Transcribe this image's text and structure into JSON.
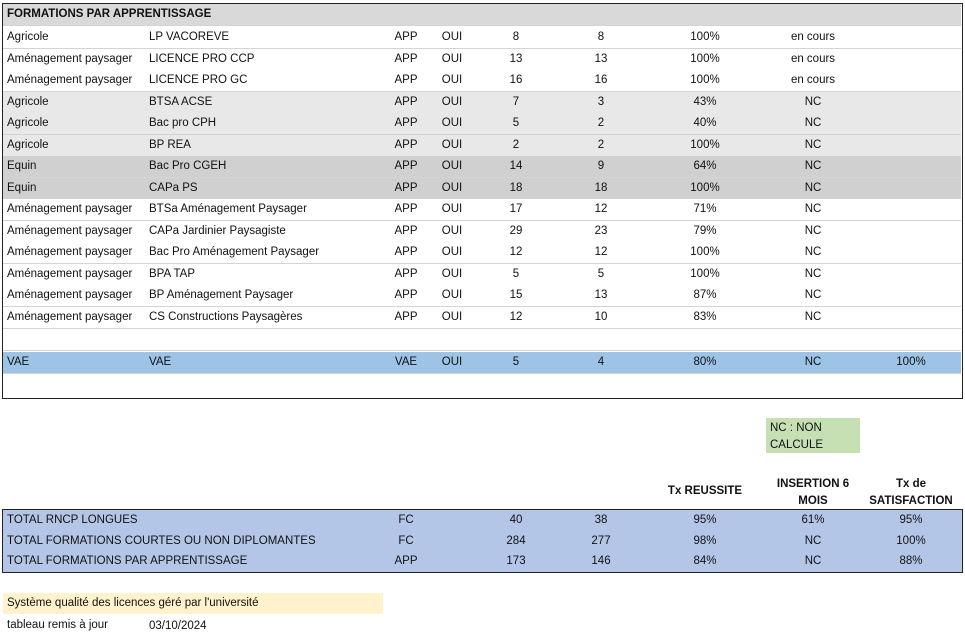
{
  "section_title": "FORMATIONS PAR APPRENTISSAGE",
  "rows": [
    [
      "Agricole",
      "LP VACOREVE",
      "APP",
      "OUI",
      "8",
      "8",
      "100%",
      "en cours"
    ],
    [
      "Aménagement paysager",
      "LICENCE PRO CCP",
      "APP",
      "OUI",
      "13",
      "13",
      "100%",
      "en cours"
    ],
    [
      "Aménagement paysager",
      "LICENCE PRO GC",
      "APP",
      "OUI",
      "16",
      "16",
      "100%",
      "en cours"
    ],
    [
      "Agricole",
      "BTSA ACSE",
      "APP",
      "OUI",
      "7",
      "3",
      "43%",
      "NC"
    ],
    [
      "Agricole",
      "Bac pro CPH",
      "APP",
      "OUI",
      "5",
      "2",
      "40%",
      "NC"
    ],
    [
      "Agricole",
      "BP REA",
      "APP",
      "OUI",
      "2",
      "2",
      "100%",
      "NC"
    ],
    [
      "Equin",
      "Bac Pro CGEH",
      "APP",
      "OUI",
      "14",
      "9",
      "64%",
      "NC"
    ],
    [
      "Equin",
      "CAPa PS",
      "APP",
      "OUI",
      "18",
      "18",
      "100%",
      "NC"
    ],
    [
      "Aménagement paysager",
      "BTSa Aménagement Paysager",
      "APP",
      "OUI",
      "17",
      "12",
      "71%",
      "NC"
    ],
    [
      "Aménagement paysager",
      "CAPa Jardinier Paysagiste",
      "APP",
      "OUI",
      "29",
      "23",
      "79%",
      "NC"
    ],
    [
      "Aménagement paysager",
      "Bac Pro Aménagement Paysager",
      "APP",
      "OUI",
      "12",
      "12",
      "100%",
      "NC"
    ],
    [
      "Aménagement paysager",
      "BPA TAP",
      "APP",
      "OUI",
      "5",
      "5",
      "100%",
      "NC"
    ],
    [
      "Aménagement paysager",
      "BP Aménagement Paysager",
      "APP",
      "OUI",
      "15",
      "13",
      "87%",
      "NC"
    ],
    [
      "Aménagement paysager",
      "CS Constructions Paysagères",
      "APP",
      "OUI",
      "12",
      "10",
      "83%",
      "NC"
    ]
  ],
  "vae_row": [
    "VAE",
    "VAE",
    "VAE",
    "OUI",
    "5",
    "4",
    "80%",
    "NC",
    "100%"
  ],
  "nc_note": [
    "NC : NON",
    "CALCULE"
  ],
  "totals_headers": {
    "success": "Tx REUSSITE",
    "insertion": [
      "INSERTION 6",
      "MOIS"
    ],
    "satisfaction": [
      "Tx de",
      "SATISFACTION"
    ]
  },
  "totals": [
    [
      "TOTAL RNCP LONGUES",
      "FC",
      "40",
      "38",
      "95%",
      "61%",
      "95%"
    ],
    [
      "TOTAL FORMATIONS COURTES OU NON DIPLOMANTES",
      "FC",
      "284",
      "277",
      "98%",
      "NC",
      "100%"
    ],
    [
      "TOTAL FORMATIONS PAR APPRENTISSAGE",
      "APP",
      "173",
      "146",
      "84%",
      "NC",
      "88%"
    ]
  ],
  "footer": {
    "quality_note": "Système qualité des licences géré par l'université",
    "updated_label": "tableau remis à jour",
    "updated_date": "03/10/2024"
  }
}
